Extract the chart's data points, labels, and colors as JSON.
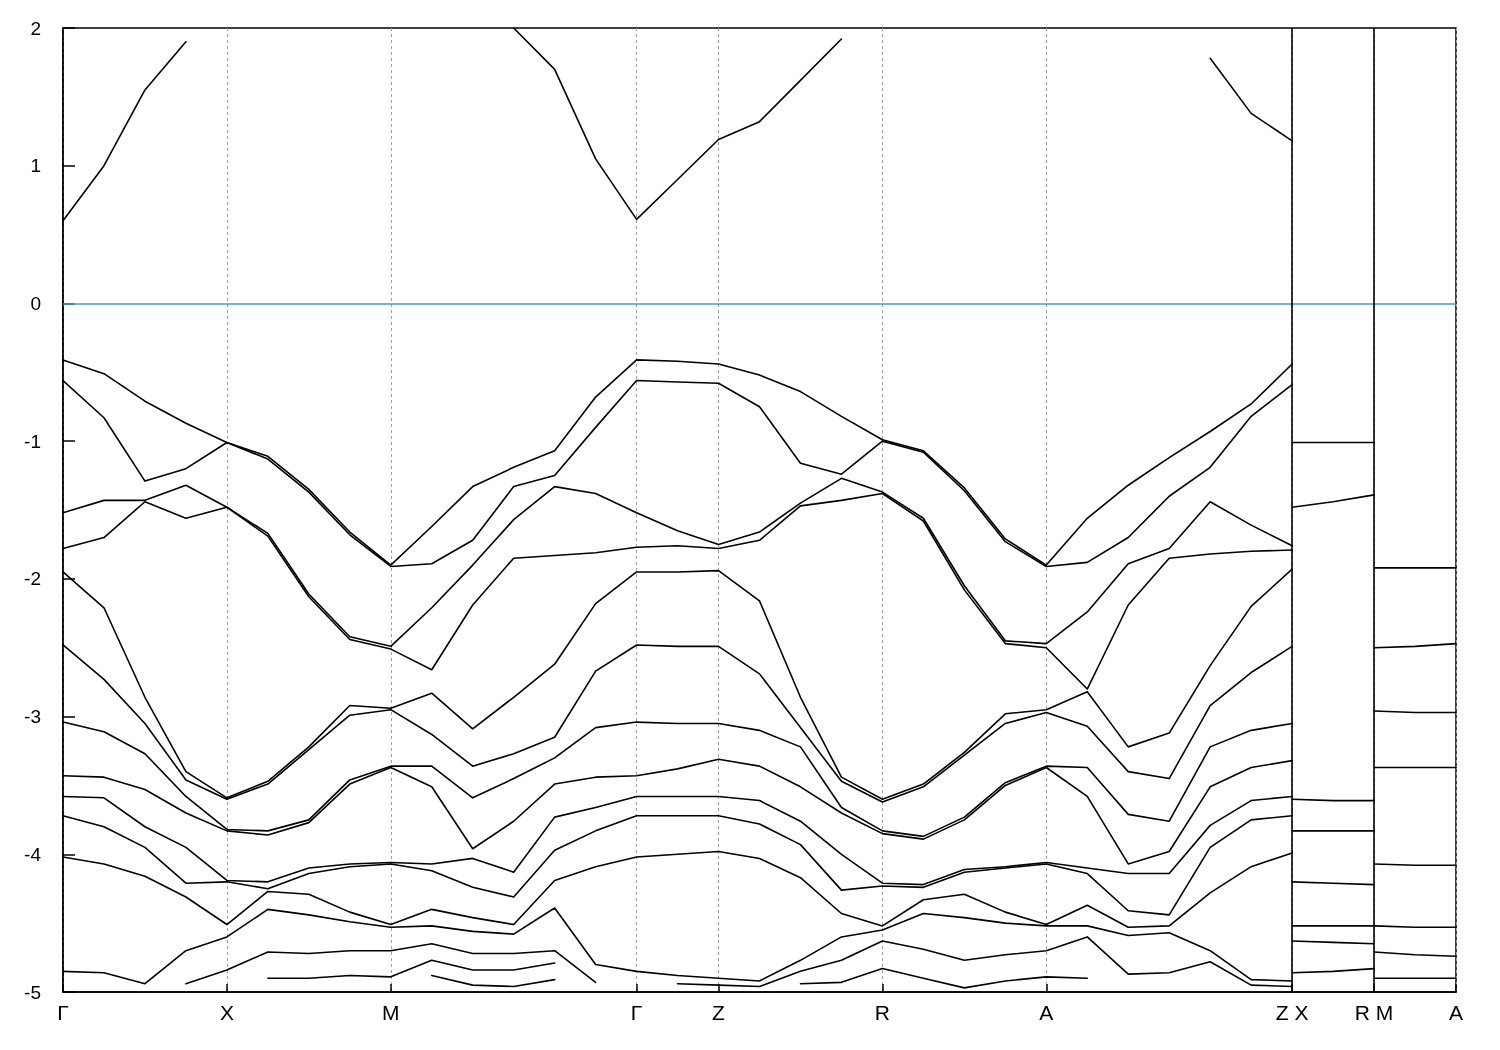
{
  "chart_data": {
    "type": "line",
    "categories": [
      "Γ",
      null,
      null,
      null,
      "X",
      null,
      null,
      null,
      "M",
      null,
      null,
      null,
      null,
      null,
      "Γ",
      null,
      "Z",
      null,
      null,
      null,
      "R",
      null,
      null,
      null,
      "A",
      null,
      null,
      null,
      null,
      null,
      "Z X",
      null,
      "R M",
      null,
      "A"
    ],
    "series": [
      {
        "color": "#000000",
        "values": [
          0.6,
          1.0,
          1.55,
          1.9,
          null,
          null,
          null,
          null,
          null,
          null,
          null,
          2.0,
          1.7,
          1.05,
          0.61,
          0.9,
          1.19,
          1.32,
          1.62,
          1.92,
          null,
          null,
          null,
          null,
          null,
          null,
          null,
          null,
          1.78,
          1.38,
          1.18,
          null,
          null,
          null,
          null
        ]
      },
      {
        "color": "#000000",
        "values": [
          -0.41,
          -0.51,
          -0.71,
          -0.87,
          -1.01,
          -1.11,
          -1.35,
          -1.66,
          -1.9,
          -1.62,
          -1.33,
          -1.19,
          -1.07,
          -0.68,
          -0.41,
          -0.42,
          -0.44,
          -0.52,
          -0.64,
          -0.82,
          -0.99,
          -1.07,
          -1.34,
          -1.71,
          -1.9,
          -1.56,
          -1.32,
          -1.12,
          -0.93,
          -0.73,
          -0.44,
          null,
          null,
          null,
          null
        ]
      },
      {
        "color": "#000000",
        "values": [
          -0.56,
          -0.83,
          -1.29,
          -1.2,
          -1.01,
          -1.13,
          -1.37,
          -1.68,
          -1.91,
          -1.89,
          -1.72,
          -1.33,
          -1.25,
          -0.9,
          -0.56,
          -0.57,
          -0.58,
          -0.75,
          -1.16,
          -1.24,
          -1.0,
          -1.08,
          -1.36,
          -1.73,
          -1.91,
          -1.88,
          -1.7,
          -1.4,
          -1.19,
          -0.82,
          -0.59,
          null,
          null,
          null,
          null
        ]
      },
      {
        "color": "#000000",
        "values": [
          -1.52,
          -1.43,
          -1.43,
          -1.32,
          -1.48,
          -1.67,
          -2.11,
          -2.42,
          -2.49,
          -2.21,
          -1.9,
          -1.57,
          -1.33,
          -1.38,
          -1.52,
          -1.65,
          -1.75,
          -1.66,
          -1.45,
          -1.27,
          -1.37,
          -1.56,
          -2.05,
          -2.45,
          -2.47,
          -2.24,
          -1.89,
          -1.78,
          -1.44,
          -1.61,
          -1.76,
          null,
          null,
          null,
          null
        ]
      },
      {
        "color": "#000000",
        "values": [
          -1.78,
          -1.7,
          -1.44,
          -1.56,
          -1.48,
          -1.69,
          -2.13,
          -2.44,
          -2.51,
          -2.66,
          -2.19,
          -1.85,
          -1.83,
          -1.81,
          -1.77,
          -1.76,
          -1.78,
          -1.72,
          -1.47,
          -1.43,
          -1.38,
          -1.58,
          -2.08,
          -2.47,
          -2.5,
          -2.8,
          -2.19,
          -1.85,
          -1.82,
          -1.8,
          -1.79,
          null,
          null,
          null,
          null
        ]
      },
      {
        "color": "#000000",
        "values": [
          -1.95,
          -2.21,
          -2.86,
          -3.4,
          -3.59,
          -3.47,
          -3.22,
          -2.92,
          -2.94,
          -2.83,
          -3.09,
          -2.86,
          -2.62,
          -2.18,
          -1.95,
          -1.95,
          -1.94,
          -2.16,
          -2.86,
          -3.44,
          -3.6,
          -3.49,
          -3.26,
          -2.98,
          -2.95,
          -2.82,
          -3.22,
          -3.12,
          -2.63,
          -2.2,
          -1.93,
          null,
          null,
          null,
          null
        ]
      },
      {
        "color": "#000000",
        "values": [
          -2.48,
          -2.73,
          -3.05,
          -3.46,
          -3.6,
          -3.49,
          -3.24,
          -2.99,
          -2.95,
          -3.13,
          -3.36,
          -3.27,
          -3.15,
          -2.67,
          -2.48,
          -2.49,
          -2.49,
          -2.69,
          -3.08,
          -3.47,
          -3.62,
          -3.51,
          -3.28,
          -3.05,
          -2.97,
          -3.07,
          -3.4,
          -3.45,
          -2.92,
          -2.68,
          -2.49,
          null,
          null,
          null,
          null
        ]
      },
      {
        "color": "#000000",
        "values": [
          -3.04,
          -3.11,
          -3.27,
          -3.58,
          -3.82,
          -3.83,
          -3.75,
          -3.46,
          -3.36,
          -3.36,
          -3.59,
          -3.45,
          -3.3,
          -3.08,
          -3.04,
          -3.05,
          -3.05,
          -3.1,
          -3.22,
          -3.66,
          -3.83,
          -3.87,
          -3.73,
          -3.48,
          -3.36,
          -3.37,
          -3.71,
          -3.76,
          -3.22,
          -3.1,
          -3.05,
          null,
          null,
          null,
          null
        ]
      },
      {
        "color": "#000000",
        "values": [
          -3.43,
          -3.44,
          -3.53,
          -3.7,
          -3.83,
          -3.86,
          -3.77,
          -3.49,
          -3.37,
          -3.51,
          -3.96,
          -3.76,
          -3.49,
          -3.44,
          -3.43,
          -3.38,
          -3.31,
          -3.36,
          -3.51,
          -3.7,
          -3.85,
          -3.89,
          -3.75,
          -3.5,
          -3.37,
          -3.58,
          -4.07,
          -3.98,
          -3.51,
          -3.37,
          -3.32,
          null,
          null,
          null,
          null
        ]
      },
      {
        "color": "#000000",
        "values": [
          -3.58,
          -3.59,
          -3.8,
          -3.95,
          -4.19,
          -4.2,
          -4.1,
          -4.07,
          -4.06,
          -4.07,
          -4.03,
          -4.13,
          -3.73,
          -3.66,
          -3.58,
          -3.58,
          -3.58,
          -3.61,
          -3.76,
          -4.0,
          -4.21,
          -4.22,
          -4.11,
          -4.09,
          -4.06,
          -4.1,
          -4.14,
          -4.14,
          -3.79,
          -3.61,
          -3.58,
          null,
          null,
          null,
          null
        ]
      },
      {
        "color": "#000000",
        "values": [
          -3.72,
          -3.8,
          -3.95,
          -4.21,
          -4.2,
          -4.25,
          -4.14,
          -4.09,
          -4.07,
          -4.12,
          -4.24,
          -4.31,
          -3.97,
          -3.83,
          -3.72,
          -3.72,
          -3.72,
          -3.78,
          -3.93,
          -4.26,
          -4.23,
          -4.24,
          -4.13,
          -4.1,
          -4.07,
          -4.14,
          -4.41,
          -4.44,
          -3.95,
          -3.75,
          -3.72,
          null,
          null,
          null,
          null
        ]
      },
      {
        "color": "#000000",
        "values": [
          -4.02,
          -4.07,
          -4.16,
          -4.31,
          -4.51,
          -4.27,
          -4.29,
          -4.42,
          -4.51,
          -4.4,
          -4.46,
          -4.51,
          -4.19,
          -4.09,
          -4.02,
          -4.0,
          -3.98,
          -4.03,
          -4.17,
          -4.43,
          -4.52,
          -4.33,
          -4.29,
          -4.42,
          -4.51,
          -4.37,
          -4.53,
          -4.52,
          -4.28,
          -4.09,
          -3.99,
          null,
          null,
          null,
          null
        ]
      },
      {
        "color": "#000000",
        "values": [
          -4.85,
          -4.86,
          -4.94,
          -4.7,
          -4.6,
          -4.4,
          -4.44,
          -4.49,
          -4.53,
          -4.52,
          -4.56,
          -4.58,
          -4.39,
          -4.8,
          -4.85,
          -4.88,
          -4.9,
          -4.92,
          -4.77,
          -4.6,
          -4.55,
          -4.43,
          -4.46,
          -4.5,
          -4.52,
          -4.52,
          -4.59,
          -4.57,
          -4.7,
          -4.91,
          -4.92,
          null,
          null,
          null,
          null
        ]
      },
      {
        "color": "#000000",
        "values": [
          null,
          null,
          null,
          -4.94,
          -4.84,
          -4.71,
          -4.72,
          -4.7,
          -4.7,
          -4.65,
          -4.72,
          -4.72,
          -4.7,
          -4.93,
          null,
          -4.94,
          -4.95,
          -4.96,
          -4.85,
          -4.77,
          -4.63,
          -4.69,
          -4.77,
          -4.73,
          -4.7,
          -4.6,
          -4.87,
          -4.86,
          -4.78,
          -4.95,
          -4.96,
          null,
          null,
          null,
          null
        ]
      },
      {
        "color": "#000000",
        "values": [
          null,
          null,
          null,
          null,
          null,
          -4.9,
          -4.9,
          -4.88,
          -4.89,
          -4.77,
          -4.84,
          -4.84,
          -4.79,
          null,
          null,
          null,
          null,
          null,
          -4.94,
          -4.93,
          -4.83,
          -4.9,
          -4.97,
          -4.92,
          -4.89,
          -4.9,
          null,
          null,
          null,
          null,
          null,
          null,
          null,
          null,
          null
        ]
      },
      {
        "color": "#000000",
        "values": [
          null,
          null,
          null,
          null,
          null,
          null,
          null,
          null,
          null,
          -4.88,
          -4.95,
          -4.96,
          -4.91,
          null,
          null,
          null,
          null,
          null,
          null,
          null,
          null,
          null,
          null,
          null,
          null,
          null,
          null,
          null,
          null,
          null,
          null,
          null,
          null,
          null,
          null
        ]
      },
      {
        "color": "#000000",
        "values": [
          null,
          null,
          null,
          null,
          null,
          null,
          null,
          null,
          null,
          null,
          null,
          null,
          null,
          null,
          null,
          null,
          null,
          null,
          null,
          null,
          null,
          null,
          null,
          null,
          null,
          null,
          null,
          null,
          null,
          null,
          -1.01,
          -1.01,
          -1.01,
          null,
          null
        ]
      },
      {
        "color": "#000000",
        "values": [
          null,
          null,
          null,
          null,
          null,
          null,
          null,
          null,
          null,
          null,
          null,
          null,
          null,
          null,
          null,
          null,
          null,
          null,
          null,
          null,
          null,
          null,
          null,
          null,
          null,
          null,
          null,
          null,
          null,
          null,
          -1.48,
          -1.44,
          -1.39,
          null,
          null
        ]
      },
      {
        "color": "#000000",
        "values": [
          null,
          null,
          null,
          null,
          null,
          null,
          null,
          null,
          null,
          null,
          null,
          null,
          null,
          null,
          null,
          null,
          null,
          null,
          null,
          null,
          null,
          null,
          null,
          null,
          null,
          null,
          null,
          null,
          null,
          null,
          -3.6,
          -3.61,
          -3.61,
          null,
          null
        ]
      },
      {
        "color": "#000000",
        "values": [
          null,
          null,
          null,
          null,
          null,
          null,
          null,
          null,
          null,
          null,
          null,
          null,
          null,
          null,
          null,
          null,
          null,
          null,
          null,
          null,
          null,
          null,
          null,
          null,
          null,
          null,
          null,
          null,
          null,
          null,
          -3.83,
          -3.83,
          -3.83,
          null,
          null
        ]
      },
      {
        "color": "#000000",
        "values": [
          null,
          null,
          null,
          null,
          null,
          null,
          null,
          null,
          null,
          null,
          null,
          null,
          null,
          null,
          null,
          null,
          null,
          null,
          null,
          null,
          null,
          null,
          null,
          null,
          null,
          null,
          null,
          null,
          null,
          null,
          -4.2,
          -4.21,
          -4.22,
          null,
          null
        ]
      },
      {
        "color": "#000000",
        "values": [
          null,
          null,
          null,
          null,
          null,
          null,
          null,
          null,
          null,
          null,
          null,
          null,
          null,
          null,
          null,
          null,
          null,
          null,
          null,
          null,
          null,
          null,
          null,
          null,
          null,
          null,
          null,
          null,
          null,
          null,
          -4.63,
          -4.64,
          -4.65,
          null,
          null
        ]
      },
      {
        "color": "#000000",
        "values": [
          null,
          null,
          null,
          null,
          null,
          null,
          null,
          null,
          null,
          null,
          null,
          null,
          null,
          null,
          null,
          null,
          null,
          null,
          null,
          null,
          null,
          null,
          null,
          null,
          null,
          null,
          null,
          null,
          null,
          null,
          -4.86,
          -4.85,
          -4.83,
          null,
          null
        ]
      },
      {
        "color": "#000000",
        "values": [
          null,
          null,
          null,
          null,
          null,
          null,
          null,
          null,
          null,
          null,
          null,
          null,
          null,
          null,
          null,
          null,
          null,
          null,
          null,
          null,
          null,
          null,
          null,
          null,
          null,
          null,
          null,
          null,
          null,
          null,
          null,
          null,
          -1.92,
          -1.92,
          -1.92
        ]
      },
      {
        "color": "#000000",
        "values": [
          null,
          null,
          null,
          null,
          null,
          null,
          null,
          null,
          null,
          null,
          null,
          null,
          null,
          null,
          null,
          null,
          null,
          null,
          null,
          null,
          null,
          null,
          null,
          null,
          null,
          null,
          null,
          null,
          null,
          null,
          null,
          null,
          -2.5,
          -2.49,
          -2.47
        ]
      },
      {
        "color": "#000000",
        "values": [
          null,
          null,
          null,
          null,
          null,
          null,
          null,
          null,
          null,
          null,
          null,
          null,
          null,
          null,
          null,
          null,
          null,
          null,
          null,
          null,
          null,
          null,
          null,
          null,
          null,
          null,
          null,
          null,
          null,
          null,
          null,
          null,
          -2.96,
          -2.97,
          -2.97
        ]
      },
      {
        "color": "#000000",
        "values": [
          null,
          null,
          null,
          null,
          null,
          null,
          null,
          null,
          null,
          null,
          null,
          null,
          null,
          null,
          null,
          null,
          null,
          null,
          null,
          null,
          null,
          null,
          null,
          null,
          null,
          null,
          null,
          null,
          null,
          null,
          null,
          null,
          -3.37,
          -3.37,
          -3.37
        ]
      },
      {
        "color": "#000000",
        "values": [
          null,
          null,
          null,
          null,
          null,
          null,
          null,
          null,
          null,
          null,
          null,
          null,
          null,
          null,
          null,
          null,
          null,
          null,
          null,
          null,
          null,
          null,
          null,
          null,
          null,
          null,
          null,
          null,
          null,
          null,
          null,
          null,
          -4.07,
          -4.08,
          -4.08
        ]
      },
      {
        "color": "#000000",
        "values": [
          null,
          null,
          null,
          null,
          null,
          null,
          null,
          null,
          null,
          null,
          null,
          null,
          null,
          null,
          null,
          null,
          null,
          null,
          null,
          null,
          null,
          null,
          null,
          null,
          null,
          null,
          null,
          null,
          null,
          null,
          -4.52,
          -4.52,
          -4.52,
          -4.53,
          -4.53
        ]
      },
      {
        "color": "#000000",
        "values": [
          null,
          null,
          null,
          null,
          null,
          null,
          null,
          null,
          null,
          null,
          null,
          null,
          null,
          null,
          null,
          null,
          null,
          null,
          null,
          null,
          null,
          null,
          null,
          null,
          null,
          null,
          null,
          null,
          null,
          null,
          null,
          null,
          -4.71,
          -4.73,
          -4.74
        ]
      },
      {
        "color": "#000000",
        "values": [
          null,
          null,
          null,
          null,
          null,
          null,
          null,
          null,
          null,
          null,
          null,
          null,
          null,
          null,
          null,
          null,
          null,
          null,
          null,
          null,
          null,
          null,
          null,
          null,
          null,
          null,
          null,
          null,
          null,
          null,
          null,
          null,
          -4.9,
          -4.9,
          -4.9
        ]
      }
    ],
    "ylim": [
      -5,
      2
    ],
    "yticks": [
      -5,
      -4,
      -3,
      -2,
      -1,
      0,
      1,
      2
    ],
    "ref_lines": [
      {
        "axis": "y",
        "value": 0,
        "color": "#3ca0d6"
      },
      {
        "axis": "x",
        "value": "Z X",
        "color": "#000000"
      },
      {
        "axis": "x",
        "value": "R M",
        "color": "#000000"
      }
    ],
    "grid": "x",
    "marker": "none",
    "line_style": "solid"
  }
}
